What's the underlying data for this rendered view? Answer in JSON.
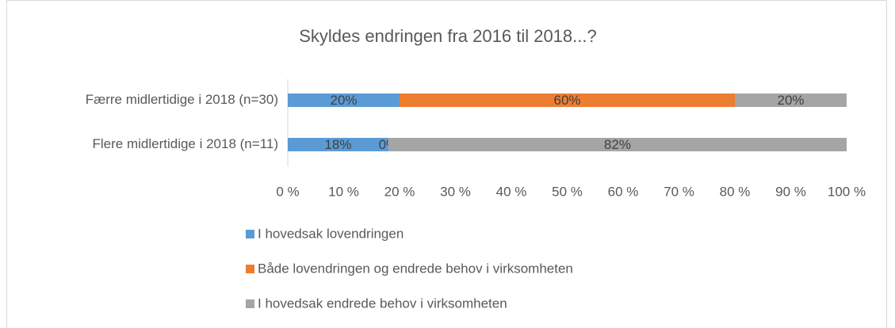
{
  "chart_data": {
    "type": "stacked_bar_horizontal",
    "title": "Skyldes endringen fra 2016 til 2018...?",
    "categories": [
      "Færre midlertidige i 2018 (n=30)",
      "Flere midlertidige i 2018 (n=11)"
    ],
    "series": [
      {
        "name": "I hovedsak lovendringen",
        "color": "#5b9bd5",
        "values": [
          20,
          18
        ],
        "value_labels": [
          "20%",
          "18%"
        ]
      },
      {
        "name": "Både lovendringen og endrede behov i virksomheten",
        "color": "#ed7d31",
        "values": [
          60,
          0
        ],
        "value_labels": [
          "60%",
          "0%"
        ]
      },
      {
        "name": "I hovedsak endrede behov i virksomheten",
        "color": "#a5a5a5",
        "values": [
          20,
          82
        ],
        "value_labels": [
          "20%",
          "82%"
        ]
      }
    ],
    "xlim": [
      0,
      100
    ],
    "xticks": [
      {
        "value": 0,
        "label": "0 %"
      },
      {
        "value": 10,
        "label": "10 %"
      },
      {
        "value": 20,
        "label": "20 %"
      },
      {
        "value": 30,
        "label": "30 %"
      },
      {
        "value": 40,
        "label": "40 %"
      },
      {
        "value": 50,
        "label": "50 %"
      },
      {
        "value": 60,
        "label": "60 %"
      },
      {
        "value": 70,
        "label": "70 %"
      },
      {
        "value": 80,
        "label": "80 %"
      },
      {
        "value": 90,
        "label": "90 %"
      },
      {
        "value": 100,
        "label": "100 %"
      }
    ],
    "grid": false,
    "legend": "bottom"
  }
}
